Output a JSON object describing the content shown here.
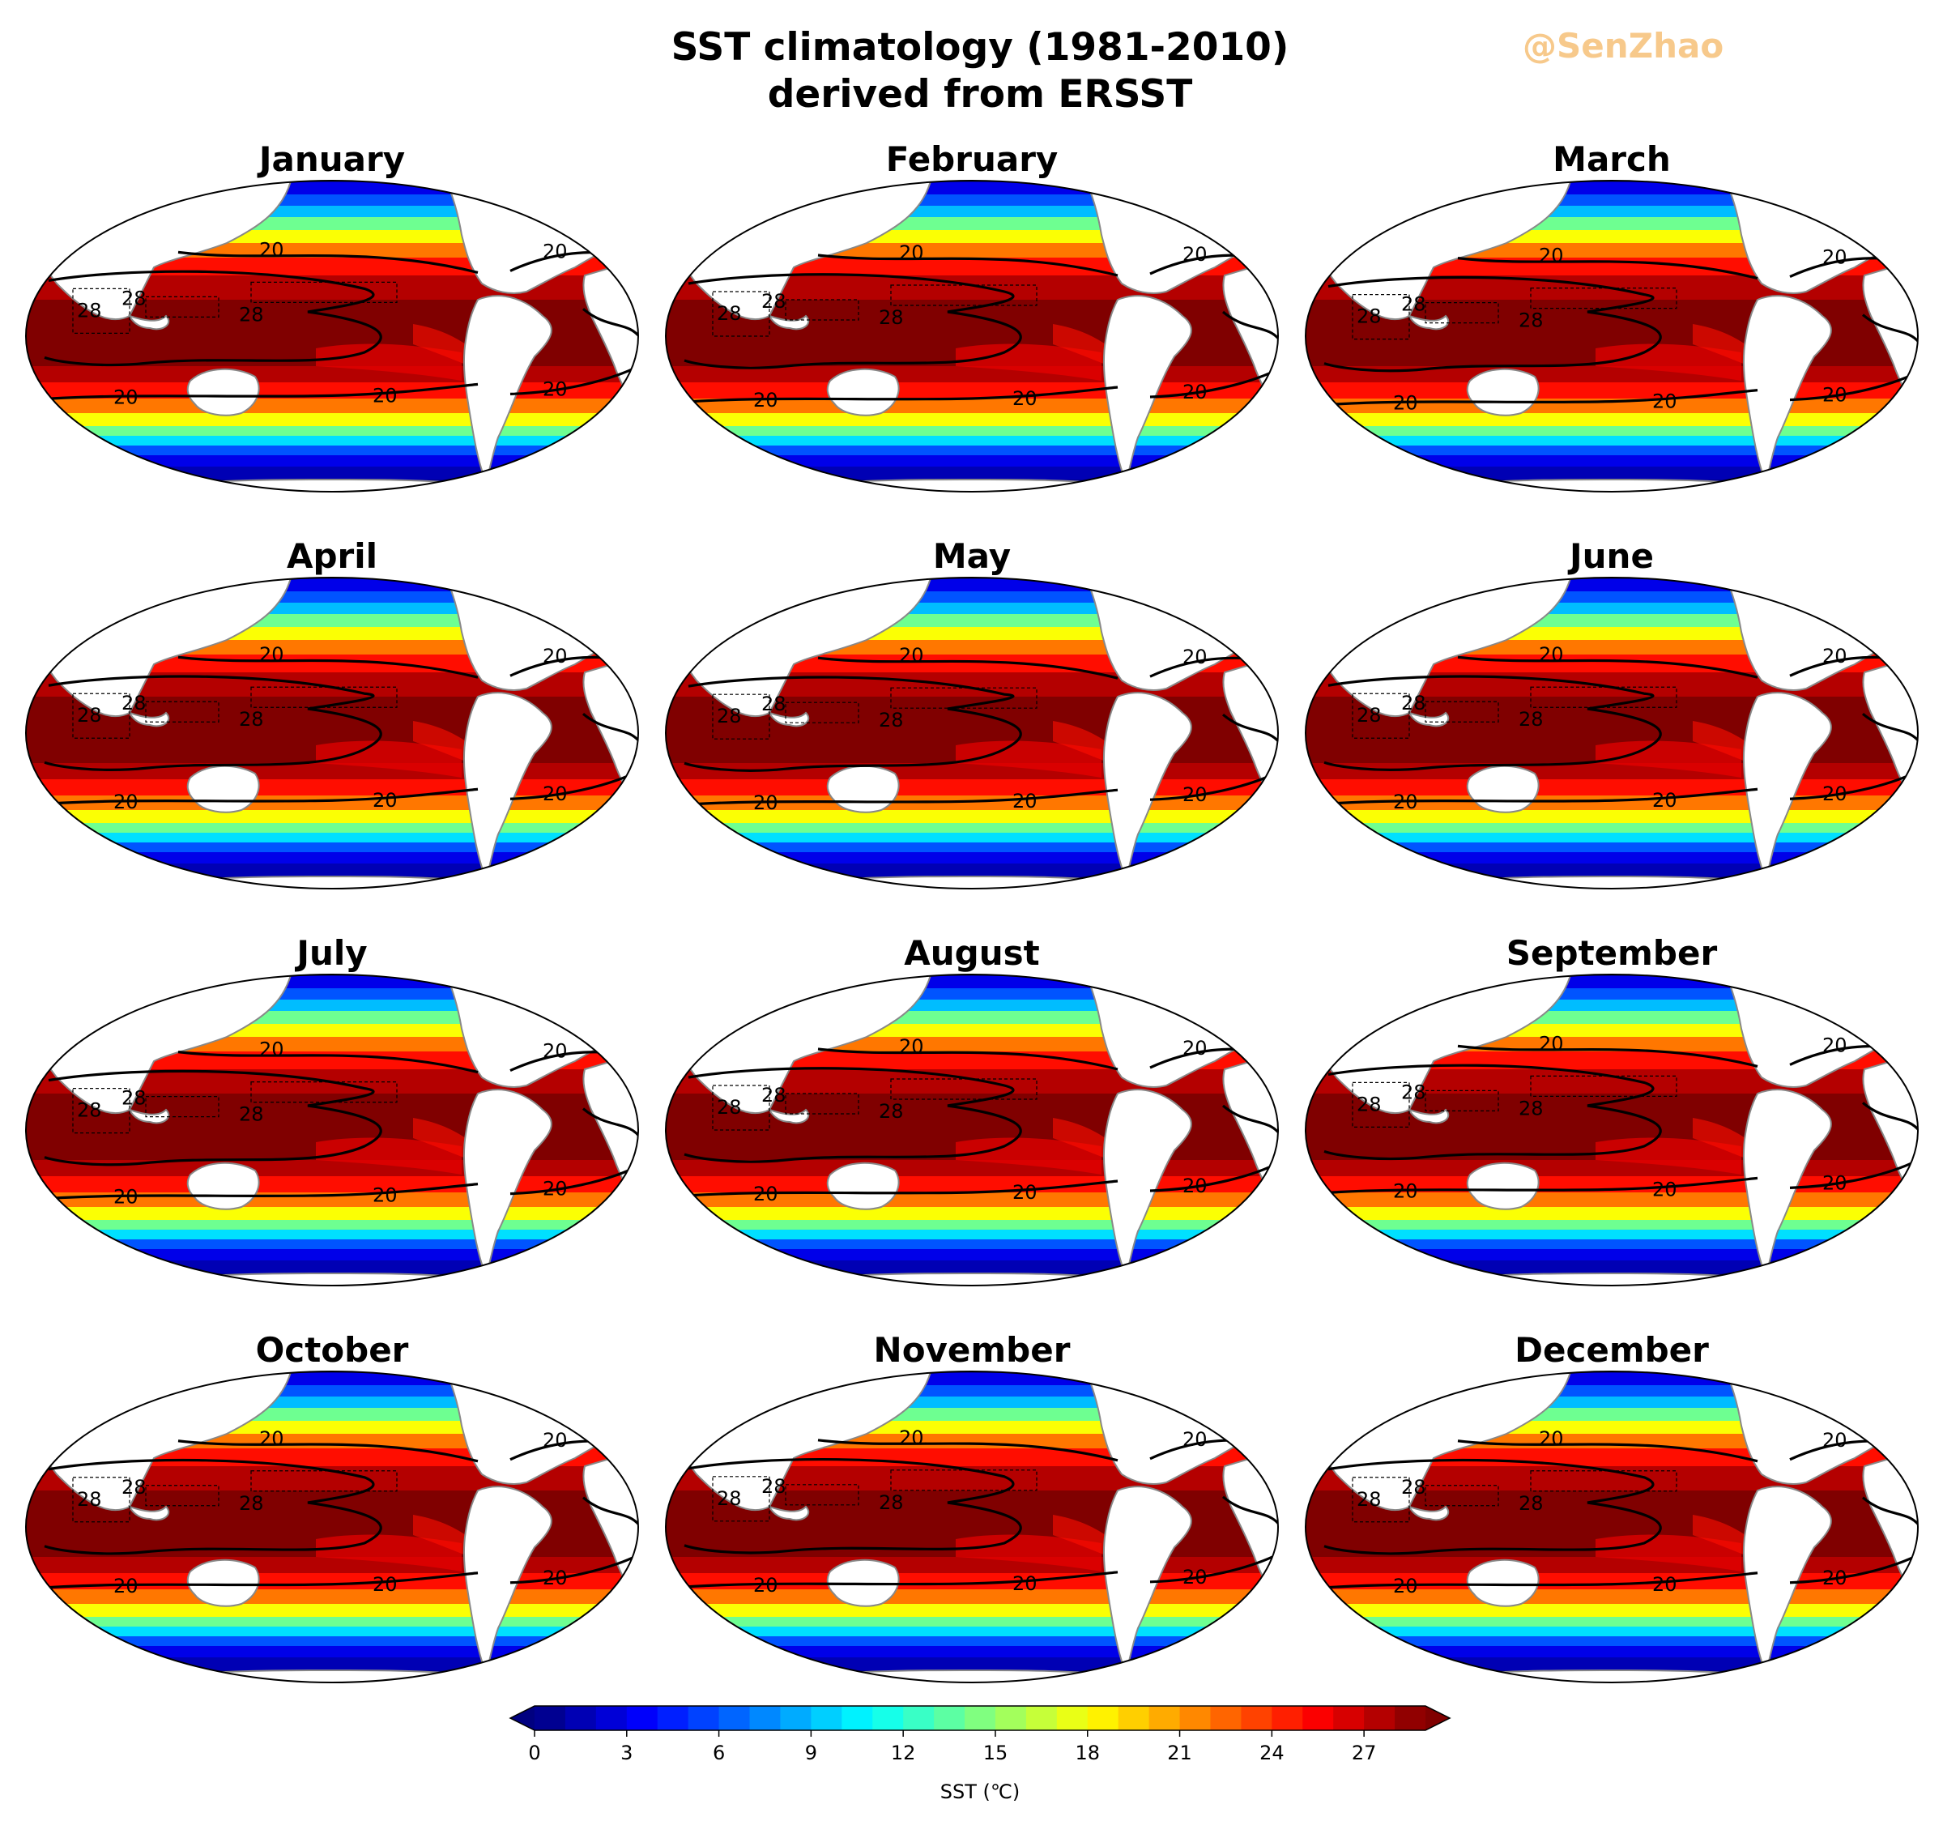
{
  "figure": {
    "title_line1": "SST climatology (1981-2010)",
    "title_line2": "derived from ERSST",
    "watermark": "@SenZhao"
  },
  "panels": [
    {
      "month": "January",
      "labels28": [
        "28",
        "28",
        "28"
      ],
      "labels20": [
        "20",
        "20",
        "20",
        "20",
        "20"
      ]
    },
    {
      "month": "February",
      "labels28": [
        "28",
        "28",
        "28"
      ],
      "labels20": [
        "20",
        "20",
        "20",
        "20",
        "20"
      ]
    },
    {
      "month": "March",
      "labels28": [
        "28",
        "28",
        "28"
      ],
      "labels20": [
        "20",
        "20",
        "20",
        "20",
        "20"
      ]
    },
    {
      "month": "April",
      "labels28": [
        "28",
        "28",
        "28"
      ],
      "labels20": [
        "20",
        "20",
        "20",
        "20",
        "20"
      ]
    },
    {
      "month": "May",
      "labels28": [
        "28",
        "28",
        "28"
      ],
      "labels20": [
        "20",
        "20",
        "20",
        "20",
        "20"
      ]
    },
    {
      "month": "June",
      "labels28": [
        "28",
        "28",
        "28"
      ],
      "labels20": [
        "20",
        "20",
        "20",
        "20",
        "20"
      ]
    },
    {
      "month": "July",
      "labels28": [
        "28",
        "28",
        "28"
      ],
      "labels20": [
        "20",
        "20",
        "20",
        "20",
        "20"
      ]
    },
    {
      "month": "August",
      "labels28": [
        "28",
        "28",
        "28"
      ],
      "labels20": [
        "20",
        "20",
        "20",
        "20",
        "20"
      ]
    },
    {
      "month": "September",
      "labels28": [
        "28",
        "28",
        "28"
      ],
      "labels20": [
        "20",
        "20",
        "20",
        "20",
        "20"
      ]
    },
    {
      "month": "October",
      "labels28": [
        "28",
        "28",
        "28"
      ],
      "labels20": [
        "20",
        "20",
        "20",
        "20",
        "20"
      ]
    },
    {
      "month": "November",
      "labels28": [
        "28",
        "28",
        "28"
      ],
      "labels20": [
        "20",
        "20",
        "20",
        "20",
        "20"
      ]
    },
    {
      "month": "December",
      "labels28": [
        "28",
        "28",
        "28"
      ],
      "labels20": [
        "20",
        "20",
        "20",
        "20",
        "20"
      ]
    }
  ],
  "colorbar": {
    "label": "SST (℃)",
    "ticks": [
      "0",
      "3",
      "6",
      "9",
      "12",
      "15",
      "18",
      "21",
      "24",
      "27"
    ],
    "min": 0,
    "max": 29,
    "levels": 29,
    "extend": "both",
    "colormap": "jet"
  },
  "colors": {
    "land": "#ffffff",
    "coast": "#888888",
    "contour": "#000000"
  }
}
